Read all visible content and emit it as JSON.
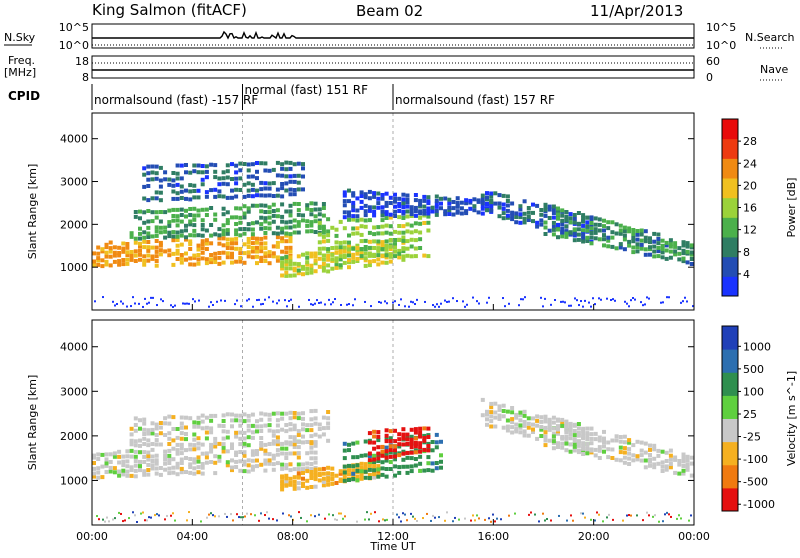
{
  "header": {
    "station": "King Salmon (fitACF)",
    "beam": "Beam 02",
    "date": "11/Apr/2013"
  },
  "top_panels": {
    "nsky_label": "N.Sky",
    "nsky_ticks": [
      "10^5",
      "10^0"
    ],
    "nsearch_label": "N.Search",
    "nsearch_ticks": [
      "10^5",
      "10^0"
    ],
    "freq_label_1": "Freq.",
    "freq_label_2": "[MHz]",
    "freq_ticks": [
      "18",
      "8"
    ],
    "nave_label": "Nave",
    "nave_ticks": [
      "60",
      "0"
    ],
    "cpid_label": "CPID",
    "cpid_segments": [
      {
        "label": "normalsound (fast) -157 RF",
        "start_hour": 0,
        "end_hour": 6
      },
      {
        "label": "normal (fast) 151 RF",
        "start_hour": 6,
        "end_hour": 12
      },
      {
        "label": "normalsound (fast) 157 RF",
        "start_hour": 12,
        "end_hour": 24
      }
    ]
  },
  "x_axis": {
    "label": "Time UT",
    "ticks": [
      "00:00",
      "04:00",
      "08:00",
      "12:00",
      "16:00",
      "20:00",
      "00:00"
    ]
  },
  "chart_data": [
    {
      "type": "heatmap",
      "name": "power",
      "ylabel": "Slant Range [km]",
      "yticks": [
        "1000",
        "2000",
        "3000",
        "4000"
      ],
      "ylim": [
        0,
        4600
      ],
      "xlim_hours": [
        0,
        24
      ],
      "colorbar_label": "Power [dB]",
      "colorbar_ticks": [
        "4",
        "8",
        "12",
        "16",
        "20",
        "24",
        "28"
      ],
      "colorbar_range": [
        0,
        30
      ],
      "colors": [
        "#1a33ff",
        "#234db4",
        "#2f7d63",
        "#4bb04b",
        "#9bd23a",
        "#f0c020",
        "#f08a12",
        "#ee3a10",
        "#e80a0a"
      ],
      "bands": [
        {
          "t0": 0.0,
          "t1": 8.0,
          "r0": 1050,
          "r1": 1650,
          "r0b": 1150,
          "r1b": 1850,
          "level": 20
        },
        {
          "t0": 1.5,
          "t1": 9.5,
          "r0": 1700,
          "r1": 2400,
          "r0b": 1850,
          "r1b": 2650,
          "level": 10
        },
        {
          "t0": 2.0,
          "t1": 8.5,
          "r0": 2600,
          "r1": 3500,
          "r0b": 2700,
          "r1b": 3600,
          "level": 6
        },
        {
          "t0": 7.5,
          "t1": 12.5,
          "r0": 800,
          "r1": 1300,
          "r0b": 1200,
          "r1b": 1800,
          "level": 16
        },
        {
          "t0": 9.0,
          "t1": 13.5,
          "r0": 1300,
          "r1": 2200,
          "r0b": 1300,
          "r1b": 2400,
          "level": 14
        },
        {
          "t0": 10.0,
          "t1": 16.0,
          "r0": 2200,
          "r1": 2900,
          "r0b": 2300,
          "r1b": 2600,
          "level": 4
        },
        {
          "t0": 15.5,
          "t1": 20.0,
          "r0": 2300,
          "r1": 2900,
          "r0b": 1600,
          "r1b": 2200,
          "level": 5
        },
        {
          "t0": 18.0,
          "t1": 24.0,
          "r0": 1800,
          "r1": 2600,
          "r0b": 1100,
          "r1b": 1600,
          "level": 9
        }
      ]
    },
    {
      "type": "heatmap",
      "name": "velocity",
      "ylabel": "Slant Range [km]",
      "yticks": [
        "1000",
        "2000",
        "3000",
        "4000"
      ],
      "ylim": [
        0,
        4600
      ],
      "xlim_hours": [
        0,
        24
      ],
      "colorbar_label": "Velocity [m s^-1]",
      "colorbar_ticks": [
        "1000",
        "500",
        "100",
        "25",
        "-25",
        "-100",
        "-500",
        "-1000"
      ],
      "colors": [
        "#2040b8",
        "#2c6fb0",
        "#2f8f4f",
        "#5fcf3f",
        "#c8c8c8",
        "#f5b020",
        "#f07a10",
        "#e51010"
      ],
      "bands": [
        {
          "t0": 0.0,
          "t1": 9.0,
          "r0": 1100,
          "r1": 1700,
          "r0b": 1300,
          "r1b": 2000,
          "level": 4
        },
        {
          "t0": 1.5,
          "t1": 9.5,
          "r0": 1800,
          "r1": 2500,
          "r0b": 1900,
          "r1b": 2700,
          "level": 4
        },
        {
          "t0": 7.5,
          "t1": 11.5,
          "r0": 800,
          "r1": 1200,
          "r0b": 1100,
          "r1b": 1500,
          "level": 5
        },
        {
          "t0": 10.0,
          "t1": 14.0,
          "r0": 1000,
          "r1": 2000,
          "r0b": 1300,
          "r1b": 2200,
          "level": 2
        },
        {
          "t0": 11.0,
          "t1": 13.5,
          "r0": 1500,
          "r1": 2200,
          "r0b": 1700,
          "r1b": 2300,
          "level": 7
        },
        {
          "t0": 15.5,
          "t1": 20.0,
          "r0": 2300,
          "r1": 2900,
          "r0b": 1600,
          "r1b": 2200,
          "level": 4
        },
        {
          "t0": 18.0,
          "t1": 24.0,
          "r0": 1800,
          "r1": 2600,
          "r0b": 1100,
          "r1b": 1600,
          "level": 4
        }
      ]
    }
  ]
}
